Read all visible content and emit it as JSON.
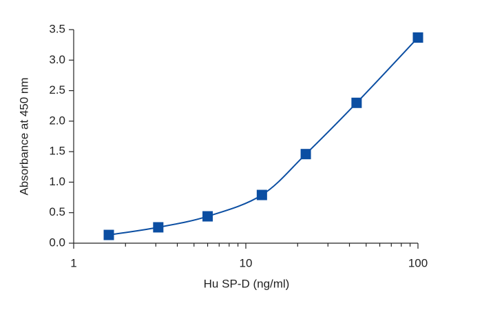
{
  "chart_data": {
    "type": "scatter",
    "x_label": "Hu SP-D (ng/ml)",
    "y_label": "Absorbance at 450 nm",
    "series": [
      {
        "color": "#0b4ea2",
        "x": [
          1.6,
          3.1,
          6.0,
          12.4,
          22.3,
          44,
          100
        ],
        "values": [
          0.135,
          0.26,
          0.44,
          0.79,
          1.46,
          2.3,
          3.37
        ]
      }
    ],
    "x_scale": "log",
    "xlim": [
      1,
      100
    ],
    "xticks": [
      1,
      10,
      100
    ],
    "ylim": [
      0,
      3.5
    ],
    "yticks": [
      {
        "value": 0,
        "label": "0.0"
      },
      0.5,
      {
        "value": 1,
        "label": "1.0"
      },
      1.5,
      {
        "value": 2,
        "label": "2.0"
      },
      2.5,
      {
        "value": 3,
        "label": "3.0"
      },
      3.5
    ],
    "smooth_line": true
  }
}
